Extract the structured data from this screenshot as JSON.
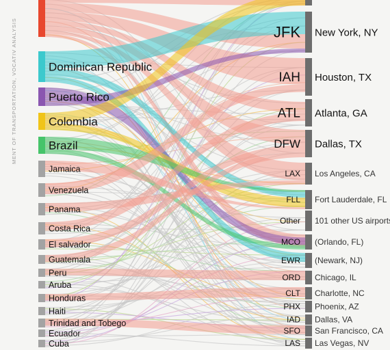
{
  "source_note": "MENT OF TRANSPORTATION, VOCATIV ANALYSIS",
  "chart_data": {
    "type": "sankey",
    "colors": {
      "Mexico": "#e8472e",
      "Dominican Republic": "#3cc9cd",
      "Puerto Rico": "#8a56b0",
      "Colombia": "#f0c419",
      "Brazil": "#46c46a",
      "other": "#a3a3a3",
      "destination_bar": "#6d6d6d",
      "link_main": "#f39c8f"
    },
    "origins": [
      {
        "name": "",
        "highlight": true
      },
      {
        "name": "Dominican Republic",
        "highlight": true
      },
      {
        "name": "Puerto Rico",
        "highlight": true
      },
      {
        "name": "Colombia",
        "highlight": true
      },
      {
        "name": "Brazil",
        "highlight": true
      },
      {
        "name": "Jamaica",
        "highlight": false
      },
      {
        "name": "Venezuela",
        "highlight": false
      },
      {
        "name": "Panama",
        "highlight": false
      },
      {
        "name": "Costa Rica",
        "highlight": false
      },
      {
        "name": "El salvador",
        "highlight": false
      },
      {
        "name": "Guatemala",
        "highlight": false
      },
      {
        "name": "Peru",
        "highlight": false
      },
      {
        "name": "Aruba",
        "highlight": false
      },
      {
        "name": "Honduras",
        "highlight": false
      },
      {
        "name": "Haiti",
        "highlight": false
      },
      {
        "name": "Trinidad and Tobego",
        "highlight": false
      },
      {
        "name": "Ecuador",
        "highlight": false
      },
      {
        "name": "Cuba",
        "highlight": false
      }
    ],
    "destinations": [
      {
        "code": "",
        "city": ""
      },
      {
        "code": "JFK",
        "city": "New York, NY"
      },
      {
        "code": "IAH",
        "city": "Houston, TX"
      },
      {
        "code": "ATL",
        "city": "Atlanta, GA"
      },
      {
        "code": "DFW",
        "city": "Dallas, TX"
      },
      {
        "code": "LAX",
        "city": "Los Angeles, CA"
      },
      {
        "code": "FLL",
        "city": "Fort Lauderdale, FL"
      },
      {
        "code": "Other",
        "city": "101 other US airports"
      },
      {
        "code": "MCO",
        "city": "(Orlando, FL)"
      },
      {
        "code": "EWR",
        "city": "(Newark, NJ)"
      },
      {
        "code": "ORD",
        "city": "Chicago, IL"
      },
      {
        "code": "CLT",
        "city": "Charlotte, NC"
      },
      {
        "code": "PHX",
        "city": "Phoenix, AZ"
      },
      {
        "code": "IAD",
        "city": "Dallas, VA"
      },
      {
        "code": "SFO",
        "city": "San Francisco, CA"
      },
      {
        "code": "LAS",
        "city": "Las Vegas, NV"
      }
    ]
  }
}
